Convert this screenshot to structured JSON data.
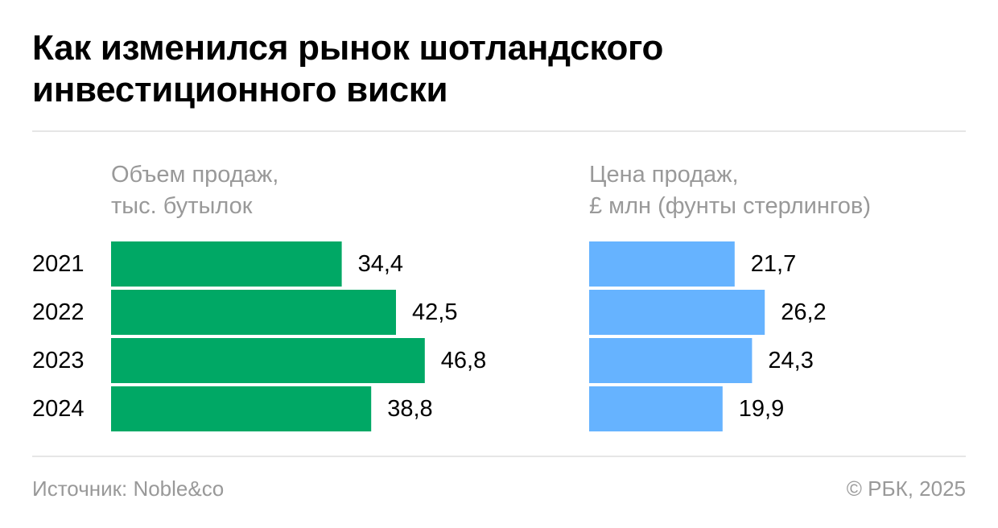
{
  "title": "Как изменился рынок шотландского инвестиционного виски",
  "colors": {
    "volume_bar": "#00a865",
    "price_bar": "#66b3ff",
    "subtitle_text": "#999999",
    "rule": "#e6e6e6"
  },
  "chart_data": [
    {
      "type": "bar",
      "orientation": "horizontal",
      "title_lines": [
        "Объем продаж,",
        "тыс. бутылок"
      ],
      "categories": [
        "2021",
        "2022",
        "2023",
        "2024"
      ],
      "values": [
        34.4,
        42.5,
        46.8,
        38.8
      ],
      "value_labels": [
        "34,4",
        "42,5",
        "46,8",
        "38,8"
      ],
      "color": "#00a865"
    },
    {
      "type": "bar",
      "orientation": "horizontal",
      "title_lines": [
        "Цена продаж,",
        "£ млн (фунты стерлингов)"
      ],
      "categories": [
        "2021",
        "2022",
        "2023",
        "2024"
      ],
      "values": [
        21.7,
        26.2,
        24.3,
        19.9
      ],
      "value_labels": [
        "21,7",
        "26,2",
        "24,3",
        "19,9"
      ],
      "color": "#66b3ff"
    }
  ],
  "footer": {
    "source": "Источник: Noble&co",
    "copyright": "© РБК, 2025"
  }
}
